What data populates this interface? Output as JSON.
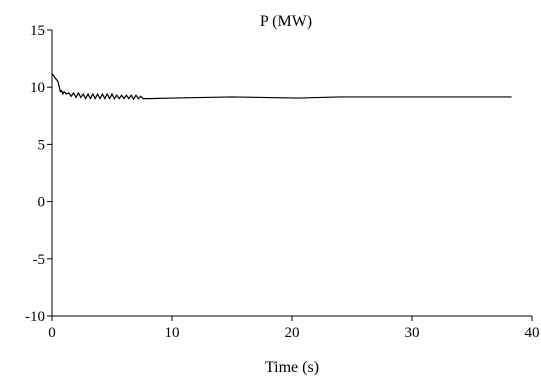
{
  "chart_data": {
    "type": "line",
    "title": "P (MW)",
    "xlabel": "Time (s)",
    "ylabel": "",
    "xlim": [
      0,
      40
    ],
    "ylim": [
      -10,
      15
    ],
    "xticks": [
      0,
      10,
      20,
      30,
      40
    ],
    "yticks": [
      -10,
      -5,
      0,
      5,
      10,
      15
    ],
    "grid": false,
    "series": [
      {
        "color": "#000000",
        "x": [
          0,
          0.2,
          0.5,
          0.7,
          0.8,
          0.9,
          1.0,
          1.2,
          1.4,
          1.6,
          1.8,
          2.0,
          2.2,
          2.4,
          2.6,
          2.8,
          3.0,
          3.2,
          3.4,
          3.6,
          3.8,
          4.0,
          4.2,
          4.4,
          4.6,
          4.8,
          5.0,
          5.2,
          5.4,
          5.6,
          5.8,
          6.0,
          6.2,
          6.4,
          6.6,
          6.8,
          7.0,
          7.2,
          7.4,
          7.6,
          8.0,
          10,
          15,
          20.5,
          24,
          30,
          38.3
        ],
        "y": [
          11.2,
          10.9,
          10.5,
          9.6,
          9.7,
          9.4,
          9.6,
          9.4,
          9.5,
          9.2,
          9.5,
          9.1,
          9.5,
          9.1,
          9.4,
          9.0,
          9.4,
          9.0,
          9.4,
          9.0,
          9.4,
          9.0,
          9.4,
          9.0,
          9.4,
          9.0,
          9.4,
          9.0,
          9.3,
          9.0,
          9.3,
          9.0,
          9.3,
          9.0,
          9.3,
          8.95,
          9.3,
          9.0,
          9.2,
          9.0,
          9.0,
          9.05,
          9.15,
          9.05,
          9.15,
          9.15,
          9.15
        ]
      }
    ]
  }
}
